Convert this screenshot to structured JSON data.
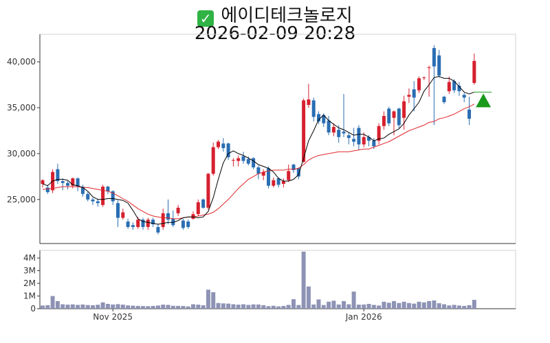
{
  "header": {
    "title": "에이디테크놀로지",
    "datetime": "2026-02-09 20:28",
    "check_icon": "check-mark-icon"
  },
  "colors": {
    "up": "#d6202f",
    "down": "#2a6eb3",
    "ma_short": "#000000",
    "ma_long": "#e0252a",
    "volume": "#8e93b5",
    "signal": "#1a9a1a"
  },
  "chart_data": [
    {
      "type": "candlestick",
      "name": "price",
      "y_ticks": [
        "25,000",
        "30,000",
        "35,000",
        "40,000"
      ],
      "y_tick_values": [
        25000,
        30000,
        35000,
        40000
      ],
      "ylim": [
        20200,
        43000
      ],
      "grid": false,
      "candles": [
        [
          26700,
          27100,
          26300,
          27200
        ],
        [
          26300,
          25800,
          25600,
          26600
        ],
        [
          26000,
          28000,
          25700,
          28300
        ],
        [
          28300,
          27000,
          26700,
          28900
        ],
        [
          27000,
          26800,
          26000,
          27300
        ],
        [
          26800,
          26500,
          26100,
          27000
        ],
        [
          26500,
          27300,
          26200,
          27400
        ],
        [
          27300,
          26400,
          25900,
          27400
        ],
        [
          26400,
          25600,
          25300,
          26600
        ],
        [
          25600,
          25000,
          24800,
          25800
        ],
        [
          25000,
          24800,
          24400,
          25200
        ],
        [
          24800,
          24600,
          24200,
          25100
        ],
        [
          24400,
          26400,
          24200,
          26600
        ],
        [
          26400,
          25900,
          25600,
          26500
        ],
        [
          25900,
          24800,
          24400,
          26000
        ],
        [
          24600,
          23000,
          22000,
          24900
        ],
        [
          23000,
          23600,
          22800,
          24000
        ],
        [
          22600,
          22000,
          21800,
          22900
        ],
        [
          22200,
          22000,
          21700,
          22500
        ],
        [
          22000,
          22800,
          21800,
          23100
        ],
        [
          22800,
          22000,
          21700,
          23000
        ],
        [
          22000,
          22800,
          21700,
          23000
        ],
        [
          22800,
          22300,
          22000,
          23000
        ],
        [
          22000,
          21400,
          21200,
          22300
        ],
        [
          22000,
          23500,
          21700,
          24000
        ],
        [
          23500,
          22800,
          22300,
          25000
        ],
        [
          22900,
          22200,
          22000,
          23800
        ],
        [
          23500,
          24100,
          23200,
          24400
        ],
        [
          22700,
          21900,
          21700,
          22900
        ],
        [
          22600,
          22000,
          21800,
          22800
        ],
        [
          22900,
          23400,
          22800,
          23700
        ],
        [
          23400,
          24700,
          23200,
          25000
        ],
        [
          25000,
          24100,
          24000,
          25100
        ],
        [
          24100,
          27800,
          23900,
          27900
        ],
        [
          27800,
          30700,
          27600,
          31200
        ],
        [
          30700,
          31300,
          30500,
          31500
        ],
        [
          31100,
          30600,
          30200,
          31700
        ],
        [
          31100,
          29600,
          29300,
          31200
        ],
        [
          29300,
          29300,
          28600,
          29500
        ],
        [
          29200,
          29500,
          28600,
          29800
        ],
        [
          29700,
          29200,
          28900,
          30200
        ],
        [
          29400,
          28900,
          28700,
          29700
        ],
        [
          29500,
          28500,
          28300,
          29600
        ],
        [
          28500,
          27800,
          27200,
          28700
        ],
        [
          27600,
          28000,
          27100,
          28300
        ],
        [
          28400,
          26500,
          26200,
          28600
        ],
        [
          26500,
          27100,
          26300,
          27400
        ],
        [
          27300,
          26600,
          26300,
          27400
        ],
        [
          26700,
          27000,
          26300,
          27300
        ],
        [
          27100,
          28100,
          26900,
          28800
        ],
        [
          28800,
          28200,
          27900,
          28900
        ],
        [
          28400,
          27500,
          27200,
          28500
        ],
        [
          29100,
          35800,
          29000,
          36000
        ],
        [
          35300,
          35900,
          35000,
          37600
        ],
        [
          35800,
          34000,
          33500,
          36100
        ],
        [
          34300,
          33500,
          33200,
          34600
        ],
        [
          34200,
          33300,
          32900,
          34400
        ],
        [
          33600,
          32300,
          32000,
          34100
        ],
        [
          32300,
          32900,
          31900,
          33300
        ],
        [
          32600,
          31800,
          31200,
          33100
        ],
        [
          32400,
          32200,
          31800,
          36500
        ],
        [
          32000,
          31700,
          31000,
          32300
        ],
        [
          31600,
          31300,
          30800,
          32800
        ],
        [
          32800,
          31000,
          30400,
          33100
        ],
        [
          31000,
          31800,
          30700,
          32300
        ],
        [
          31800,
          31400,
          30800,
          32000
        ],
        [
          31400,
          30800,
          30500,
          31700
        ],
        [
          31400,
          33000,
          31000,
          33300
        ],
        [
          33000,
          34100,
          32600,
          34600
        ],
        [
          34900,
          33300,
          33000,
          35100
        ],
        [
          33900,
          34600,
          32000,
          34700
        ],
        [
          34900,
          33100,
          32800,
          35000
        ],
        [
          33900,
          35700,
          32600,
          36300
        ],
        [
          36200,
          36400,
          35500,
          37100
        ],
        [
          37000,
          36100,
          34600,
          37900
        ],
        [
          36900,
          38200,
          36600,
          38400
        ],
        [
          38300,
          38300,
          38000,
          38400
        ],
        [
          39400,
          39400,
          36200,
          39600
        ],
        [
          41500,
          39500,
          33100,
          41800
        ],
        [
          40700,
          38500,
          38300,
          41300
        ],
        [
          36200,
          35600,
          35400,
          36300
        ],
        [
          36800,
          37800,
          36500,
          38400
        ],
        [
          37900,
          36900,
          36600,
          38100
        ],
        [
          37400,
          36800,
          36300,
          37800
        ],
        [
          36400,
          36100,
          35600,
          36600
        ],
        [
          34800,
          33800,
          33100,
          36200
        ],
        [
          37700,
          40100,
          37500,
          40900
        ]
      ],
      "ma_short": [
        26700,
        26500,
        27000,
        27200,
        27200,
        27100,
        26600,
        26500,
        26300,
        25900,
        25300,
        25000,
        25000,
        25100,
        25100,
        25000,
        24900,
        24600,
        23800,
        22900,
        22600,
        22500,
        22400,
        22300,
        22400,
        22500,
        22500,
        22700,
        23000,
        23100,
        23100,
        23000,
        23100,
        23700,
        25200,
        27200,
        29000,
        30000,
        30300,
        30000,
        29800,
        29500,
        29200,
        28800,
        28600,
        28400,
        28000,
        27300,
        27000,
        27000,
        27200,
        27700,
        29500,
        31400,
        32500,
        33700,
        34200,
        33600,
        33200,
        32800,
        32600,
        32300,
        32000,
        32100,
        32100,
        31800,
        31400,
        31600,
        31700,
        32100,
        32400,
        32700,
        33300,
        34200,
        34900,
        35600,
        36800,
        37500,
        38300,
        38400,
        38200,
        38200,
        37900,
        37300,
        36700,
        36500,
        36700
      ],
      "ma_long": [
        26100,
        26150,
        26200,
        26300,
        26400,
        26400,
        26400,
        26400,
        26300,
        26300,
        26200,
        26100,
        26000,
        25900,
        25700,
        25400,
        25100,
        24800,
        24400,
        24000,
        23700,
        23400,
        23200,
        23100,
        23000,
        23000,
        22900,
        22900,
        23000,
        23100,
        23100,
        23200,
        23300,
        23400,
        23600,
        24000,
        24500,
        25000,
        25600,
        26200,
        26700,
        27200,
        27500,
        27800,
        28000,
        28100,
        28200,
        28200,
        28200,
        28300,
        28300,
        28400,
        28800,
        29300,
        29600,
        29800,
        29900,
        30000,
        30100,
        30200,
        30200,
        30200,
        30300,
        30400,
        30500,
        30500,
        30700,
        30900,
        31100,
        31300,
        31600,
        31900,
        32200,
        32500,
        32700,
        32900,
        33100,
        33400,
        33500,
        33800,
        33900,
        34100,
        34300,
        34600,
        34900,
        35100,
        35400
      ],
      "signal_marker": {
        "type": "triangle-up",
        "candle_index": 87,
        "value": 35800,
        "guide_value": 36700
      }
    },
    {
      "type": "bar",
      "name": "volume",
      "y_ticks": [
        "0",
        "1M",
        "2M",
        "3M",
        "4M"
      ],
      "y_tick_values": [
        0,
        1000000,
        2000000,
        3000000,
        4000000
      ],
      "ylim": [
        0,
        4600000
      ],
      "x_tick_labels": [
        "Nov 2025",
        "Jan 2026"
      ],
      "x_tick_candle_index": [
        14,
        64
      ],
      "values": [
        250000,
        280000,
        1000000,
        600000,
        350000,
        320000,
        340000,
        300000,
        330000,
        290000,
        270000,
        310000,
        500000,
        380000,
        330000,
        360000,
        320000,
        260000,
        240000,
        220000,
        210000,
        200000,
        220000,
        250000,
        320000,
        300000,
        230000,
        220000,
        210000,
        180000,
        350000,
        320000,
        270000,
        1500000,
        1300000,
        450000,
        420000,
        400000,
        350000,
        320000,
        350000,
        300000,
        340000,
        330000,
        280000,
        200000,
        230000,
        180000,
        220000,
        300000,
        750000,
        290000,
        4500000,
        1750000,
        330000,
        730000,
        290000,
        550000,
        630000,
        330000,
        600000,
        350000,
        1350000,
        320000,
        330000,
        380000,
        300000,
        250000,
        550000,
        470000,
        600000,
        450000,
        550000,
        450000,
        400000,
        550000,
        500000,
        600000,
        650000,
        430000,
        350000,
        260000,
        300000,
        250000,
        220000,
        280000,
        700000
      ]
    }
  ]
}
